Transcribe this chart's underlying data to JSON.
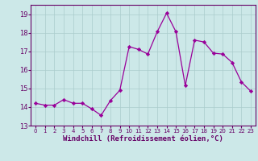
{
  "x": [
    0,
    1,
    2,
    3,
    4,
    5,
    6,
    7,
    8,
    9,
    10,
    11,
    12,
    13,
    14,
    15,
    16,
    17,
    18,
    19,
    20,
    21,
    22,
    23
  ],
  "y": [
    14.2,
    14.1,
    14.1,
    14.4,
    14.2,
    14.2,
    13.9,
    13.55,
    14.35,
    14.9,
    17.25,
    17.1,
    16.85,
    18.05,
    19.05,
    18.05,
    15.15,
    17.6,
    17.5,
    16.9,
    16.85,
    16.4,
    15.35,
    14.85
  ],
  "line_color": "#990099",
  "marker": "D",
  "marker_size": 2.2,
  "bg_color": "#cce8e8",
  "grid_color": "#aacccc",
  "xlabel": "Windchill (Refroidissement éolien,°C)",
  "ylim": [
    13,
    19.5
  ],
  "yticks": [
    13,
    14,
    15,
    16,
    17,
    18,
    19
  ],
  "xticks": [
    0,
    1,
    2,
    3,
    4,
    5,
    6,
    7,
    8,
    9,
    10,
    11,
    12,
    13,
    14,
    15,
    16,
    17,
    18,
    19,
    20,
    21,
    22,
    23
  ],
  "xlabel_fontsize": 6.5,
  "tick_fontsize": 6.0
}
